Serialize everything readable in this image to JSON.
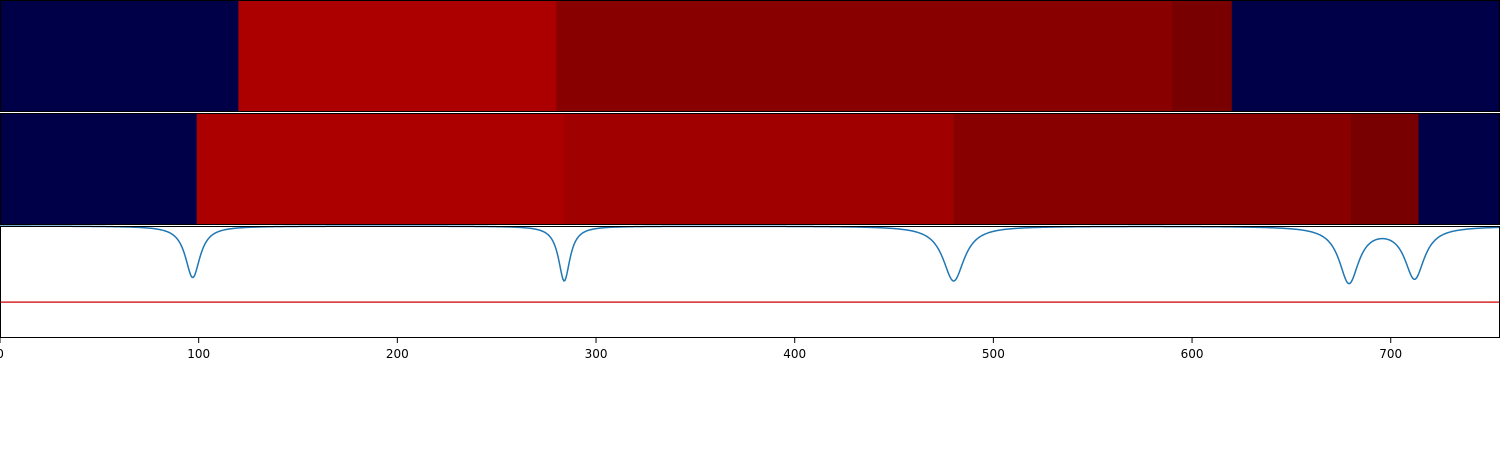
{
  "chart_data": {
    "type": "heatmap",
    "x_range": [
      0,
      755
    ],
    "x_ticks": [
      0,
      100,
      200,
      300,
      400,
      500,
      600,
      700
    ],
    "colors": {
      "background": "#000048",
      "band_bright": "#ac0000",
      "band_mid": "#a00000",
      "band_dark": "#880000",
      "band_darkest": "#780000",
      "line": "#1f77b4",
      "threshold": "#d62728"
    },
    "rows": [
      {
        "segments": [
          {
            "x0": 0,
            "x1": 120,
            "color": "#000048"
          },
          {
            "x0": 120,
            "x1": 280,
            "color": "#ac0000"
          },
          {
            "x0": 280,
            "x1": 590,
            "color": "#880000"
          },
          {
            "x0": 590,
            "x1": 620,
            "color": "#780000"
          },
          {
            "x0": 620,
            "x1": 755,
            "color": "#000048"
          }
        ]
      },
      {
        "segments": [
          {
            "x0": 0,
            "x1": 99,
            "color": "#000048"
          },
          {
            "x0": 99,
            "x1": 284,
            "color": "#ac0000"
          },
          {
            "x0": 284,
            "x1": 480,
            "color": "#a00000"
          },
          {
            "x0": 480,
            "x1": 680,
            "color": "#880000"
          },
          {
            "x0": 680,
            "x1": 714,
            "color": "#780000"
          },
          {
            "x0": 714,
            "x1": 755,
            "color": "#000048"
          }
        ]
      }
    ],
    "line_panel": {
      "y_range": [
        0,
        1
      ],
      "baseline": 1.0,
      "threshold": 0.32,
      "dips": [
        {
          "center": 97,
          "depth": 0.46,
          "width": 4.5
        },
        {
          "center": 284,
          "depth": 0.49,
          "width": 3.5
        },
        {
          "center": 480,
          "depth": 0.49,
          "width": 6.5
        },
        {
          "center": 679,
          "depth": 0.5,
          "width": 6
        },
        {
          "center": 712,
          "depth": 0.46,
          "width": 6
        }
      ]
    }
  }
}
